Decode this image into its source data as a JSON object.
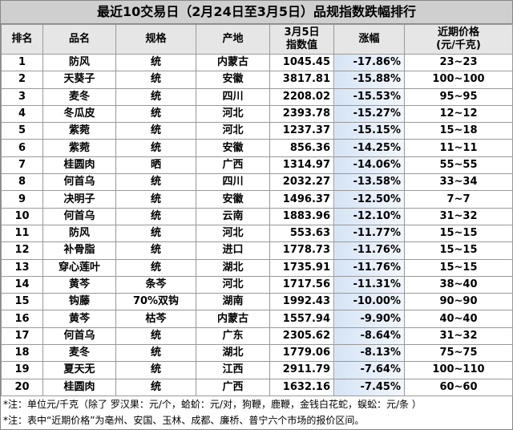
{
  "title": "最近10交易日（2月24日至3月5日）品规指数跌幅排行",
  "table": {
    "headers": [
      "排名",
      "品名",
      "规格",
      "产地",
      "3月5日\n指数值",
      "涨幅",
      "近期价格\n(元/千克)"
    ],
    "rows": [
      [
        "1",
        "防风",
        "统",
        "内蒙古",
        "1045.45",
        "-17.86%",
        "23~23"
      ],
      [
        "2",
        "天葵子",
        "统",
        "安徽",
        "3817.81",
        "-15.88%",
        "100~100"
      ],
      [
        "3",
        "麦冬",
        "统",
        "四川",
        "2208.02",
        "-15.53%",
        "95~95"
      ],
      [
        "4",
        "冬瓜皮",
        "统",
        "河北",
        "2393.78",
        "-15.27%",
        "12~12"
      ],
      [
        "5",
        "紫菀",
        "统",
        "河北",
        "1237.37",
        "-15.15%",
        "15~18"
      ],
      [
        "6",
        "紫菀",
        "统",
        "安徽",
        "856.36",
        "-14.25%",
        "11~11"
      ],
      [
        "7",
        "桂圆肉",
        "晒",
        "广西",
        "1314.97",
        "-14.06%",
        "55~55"
      ],
      [
        "8",
        "何首乌",
        "统",
        "四川",
        "2032.27",
        "-13.58%",
        "33~34"
      ],
      [
        "9",
        "决明子",
        "统",
        "安徽",
        "1496.37",
        "-12.50%",
        "7~7"
      ],
      [
        "10",
        "何首乌",
        "统",
        "云南",
        "1883.96",
        "-12.10%",
        "31~32"
      ],
      [
        "11",
        "防风",
        "统",
        "河北",
        "553.63",
        "-11.77%",
        "15~15"
      ],
      [
        "12",
        "补骨脂",
        "统",
        "进口",
        "1778.73",
        "-11.76%",
        "15~15"
      ],
      [
        "13",
        "穿心莲叶",
        "统",
        "湖北",
        "1735.91",
        "-11.76%",
        "15~15"
      ],
      [
        "14",
        "黄芩",
        "条芩",
        "河北",
        "1717.56",
        "-11.31%",
        "38~40"
      ],
      [
        "15",
        "钩藤",
        "70%双钩",
        "湖南",
        "1992.43",
        "-10.00%",
        "90~90"
      ],
      [
        "16",
        "黄芩",
        "枯芩",
        "内蒙古",
        "1557.94",
        "-9.90%",
        "40~40"
      ],
      [
        "17",
        "何首乌",
        "统",
        "广东",
        "2305.62",
        "-8.64%",
        "31~32"
      ],
      [
        "18",
        "麦冬",
        "统",
        "湖北",
        "1779.06",
        "-8.13%",
        "75~75"
      ],
      [
        "19",
        "夏天无",
        "统",
        "江西",
        "2911.79",
        "-7.64%",
        "100~110"
      ],
      [
        "20",
        "桂圆肉",
        "统",
        "广西",
        "1632.16",
        "-7.45%",
        "60~60"
      ]
    ]
  },
  "notes": [
    "*注：单位元/千克（除了 罗汉果：元/个，蛤蚧：元/对，狗鞭，鹿鞭，金钱白花蛇，蜈蚣：元/条 ）",
    "*注：表中“近期价格”为亳州、安国、玉林、成都、廉桥、普宁六个市场的报价区间。"
  ]
}
